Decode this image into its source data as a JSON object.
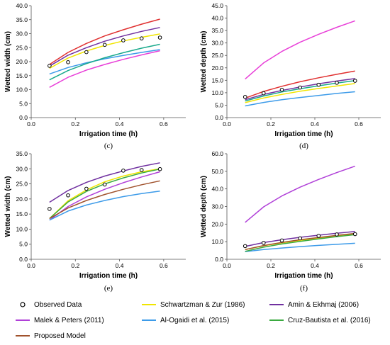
{
  "chart_data": [
    {
      "panel": "(c)",
      "type": "line",
      "xlabel": "Irrigation time (h)",
      "ylabel": "Wetted width (cm)",
      "xlim": [
        0.0,
        0.7
      ],
      "ylim": [
        0.0,
        40.0
      ],
      "xticks": [
        "0.0",
        "0.2",
        "0.4",
        "0.6"
      ],
      "yticks": [
        "0.0",
        "5.0",
        "10.0",
        "15.0",
        "20.0",
        "25.0",
        "30.0",
        "35.0",
        "40.0"
      ],
      "observed": {
        "x": [
          0.083,
          0.167,
          0.25,
          0.333,
          0.417,
          0.5,
          0.583
        ],
        "y": [
          18.5,
          19.8,
          23.4,
          26.0,
          27.6,
          28.3,
          28.6
        ]
      },
      "series": [
        {
          "name": "Schwartzman & Zur (1986)",
          "color": "#f0e500",
          "x": [
            0.083,
            0.167,
            0.25,
            0.333,
            0.417,
            0.5,
            0.583
          ],
          "y": [
            17.6,
            21.3,
            23.8,
            25.8,
            27.4,
            28.7,
            29.9
          ]
        },
        {
          "name": "Amin & Ekhmaj (2006)",
          "color": "#7030a0",
          "x": [
            0.083,
            0.167,
            0.25,
            0.333,
            0.417,
            0.5,
            0.583
          ],
          "y": [
            18.4,
            22.3,
            25.0,
            27.3,
            29.2,
            30.8,
            32.2
          ]
        },
        {
          "name": "Malek & Peters (2011)",
          "color": "#e83fd8",
          "x": [
            0.083,
            0.167,
            0.25,
            0.333,
            0.417,
            0.5,
            0.583
          ],
          "y": [
            10.8,
            14.4,
            17.0,
            19.0,
            20.8,
            22.4,
            23.9
          ]
        },
        {
          "name": "Al-Ogaidi et al. (2015)",
          "color": "#3d9be9",
          "x": [
            0.083,
            0.167,
            0.25,
            0.333,
            0.417,
            0.5,
            0.583
          ],
          "y": [
            15.6,
            17.9,
            19.6,
            21.0,
            22.2,
            23.3,
            24.3
          ]
        },
        {
          "name": "Cruz-Bautista et al. (2016)",
          "color": "#1aaa8c",
          "x": [
            0.083,
            0.167,
            0.25,
            0.333,
            0.417,
            0.5,
            0.583
          ],
          "y": [
            13.5,
            16.8,
            19.3,
            21.4,
            23.2,
            24.8,
            26.2
          ]
        },
        {
          "name": "Proposed Model",
          "color": "#e03030",
          "x": [
            0.083,
            0.167,
            0.25,
            0.333,
            0.417,
            0.5,
            0.583
          ],
          "y": [
            19.0,
            23.3,
            26.5,
            29.2,
            31.4,
            33.4,
            35.2
          ]
        }
      ]
    },
    {
      "panel": "(d)",
      "type": "line",
      "xlabel": "Irrigation time (h)",
      "ylabel": "Wetted depth (cm)",
      "xlim": [
        0.0,
        0.7
      ],
      "ylim": [
        0.0,
        45.0
      ],
      "xticks": [
        "0.0",
        "0.2",
        "0.4",
        "0.6"
      ],
      "yticks": [
        "0.0",
        "5.0",
        "10.0",
        "15.0",
        "20.0",
        "25.0",
        "30.0",
        "35.0",
        "40.0",
        "45.0"
      ],
      "observed": {
        "x": [
          0.083,
          0.167,
          0.25,
          0.333,
          0.417,
          0.5,
          0.583
        ],
        "y": [
          8.3,
          9.8,
          11.2,
          12.1,
          13.2,
          14.0,
          14.8
        ]
      },
      "series": [
        {
          "name": "Schwartzman & Zur (1986)",
          "color": "#f0e500",
          "x": [
            0.083,
            0.167,
            0.25,
            0.333,
            0.417,
            0.5,
            0.583
          ],
          "y": [
            6.0,
            7.9,
            9.3,
            10.6,
            11.7,
            12.7,
            13.7
          ]
        },
        {
          "name": "Amin & Ekhmaj (2006)",
          "color": "#7030a0",
          "x": [
            0.083,
            0.167,
            0.25,
            0.333,
            0.417,
            0.5,
            0.583
          ],
          "y": [
            7.2,
            9.3,
            10.9,
            12.3,
            13.6,
            14.7,
            15.7
          ]
        },
        {
          "name": "Malek & Peters (2011)",
          "color": "#e83fd8",
          "x": [
            0.083,
            0.167,
            0.25,
            0.333,
            0.417,
            0.5,
            0.583
          ],
          "y": [
            15.5,
            22.0,
            26.6,
            30.3,
            33.5,
            36.3,
            38.9
          ]
        },
        {
          "name": "Al-Ogaidi et al. (2015)",
          "color": "#3d9be9",
          "x": [
            0.083,
            0.167,
            0.25,
            0.333,
            0.417,
            0.5,
            0.583
          ],
          "y": [
            4.7,
            6.1,
            7.2,
            8.1,
            8.9,
            9.7,
            10.4
          ]
        },
        {
          "name": "Cruz-Bautista et al. (2016)",
          "color": "#1aaa8c",
          "x": [
            0.083,
            0.167,
            0.25,
            0.333,
            0.417,
            0.5,
            0.583
          ],
          "y": [
            6.7,
            8.7,
            10.3,
            11.6,
            12.8,
            13.9,
            14.9
          ]
        },
        {
          "name": "Proposed Model",
          "color": "#e03030",
          "x": [
            0.083,
            0.167,
            0.25,
            0.333,
            0.417,
            0.5,
            0.583
          ],
          "y": [
            7.8,
            10.5,
            12.6,
            14.4,
            16.0,
            17.4,
            18.7
          ]
        }
      ]
    },
    {
      "panel": "(e)",
      "type": "line",
      "xlabel": "Irrigation time (h)",
      "ylabel": "Wetted width (cm)",
      "xlim": [
        0.0,
        0.7
      ],
      "ylim": [
        0.0,
        35.0
      ],
      "xticks": [
        "0.0",
        "0.2",
        "0.4",
        "0.6"
      ],
      "yticks": [
        "0.0",
        "5.0",
        "10.0",
        "15.0",
        "20.0",
        "25.0",
        "30.0",
        "35.0"
      ],
      "observed": {
        "x": [
          0.083,
          0.167,
          0.25,
          0.333,
          0.417,
          0.5,
          0.583
        ],
        "y": [
          16.7,
          21.2,
          23.4,
          24.8,
          29.4,
          29.6,
          29.9
        ]
      },
      "series": [
        {
          "name": "Schwartzman & Zur (1986)",
          "color": "#f0e500",
          "x": [
            0.083,
            0.167,
            0.25,
            0.333,
            0.417,
            0.5,
            0.583
          ],
          "y": [
            13.5,
            19.4,
            23.0,
            25.7,
            27.6,
            29.0,
            30.0
          ]
        },
        {
          "name": "Amin & Ekhmaj (2006)",
          "color": "#7030a0",
          "x": [
            0.083,
            0.167,
            0.25,
            0.333,
            0.417,
            0.5,
            0.583
          ],
          "y": [
            18.9,
            22.8,
            25.5,
            27.6,
            29.3,
            30.8,
            32.0
          ]
        },
        {
          "name": "Malek & Peters (2011)",
          "color": "#b040d8",
          "x": [
            0.083,
            0.167,
            0.25,
            0.333,
            0.417,
            0.5,
            0.583
          ],
          "y": [
            13.0,
            17.5,
            20.7,
            23.2,
            25.4,
            27.3,
            29.0
          ]
        },
        {
          "name": "Al-Ogaidi et al. (2015)",
          "color": "#3d9be9",
          "x": [
            0.083,
            0.167,
            0.25,
            0.333,
            0.417,
            0.5,
            0.583
          ],
          "y": [
            13.0,
            16.0,
            18.0,
            19.5,
            20.8,
            21.8,
            22.6
          ]
        },
        {
          "name": "Cruz-Bautista et al. (2016)",
          "color": "#3aaa40",
          "x": [
            0.083,
            0.167,
            0.25,
            0.333,
            0.417,
            0.5,
            0.583
          ],
          "y": [
            13.5,
            19.0,
            22.5,
            25.0,
            27.0,
            28.6,
            29.9
          ]
        },
        {
          "name": "Proposed Model",
          "color": "#a0522d",
          "x": [
            0.083,
            0.167,
            0.25,
            0.333,
            0.417,
            0.5,
            0.583
          ],
          "y": [
            13.5,
            17.0,
            19.5,
            21.5,
            23.2,
            24.7,
            26.0
          ]
        }
      ]
    },
    {
      "panel": "(f)",
      "type": "line",
      "xlabel": "Irrigation time (h)",
      "ylabel": "Wetted depth (cm)",
      "xlim": [
        0.0,
        0.7
      ],
      "ylim": [
        0.0,
        60.0
      ],
      "xticks": [
        "0.0",
        "0.2",
        "0.4",
        "0.6"
      ],
      "yticks": [
        "0.0",
        "10.0",
        "20.0",
        "30.0",
        "40.0",
        "50.0",
        "60.0"
      ],
      "observed": {
        "x": [
          0.083,
          0.167,
          0.25,
          0.333,
          0.417,
          0.5,
          0.583
        ],
        "y": [
          7.5,
          9.3,
          10.7,
          11.9,
          13.3,
          14.1,
          14.3
        ]
      },
      "series": [
        {
          "name": "Schwartzman & Zur (1986)",
          "color": "#f0e500",
          "x": [
            0.083,
            0.167,
            0.25,
            0.333,
            0.417,
            0.5,
            0.583
          ],
          "y": [
            5.5,
            7.7,
            9.4,
            10.8,
            12.1,
            13.2,
            14.2
          ]
        },
        {
          "name": "Amin & Ekhmaj (2006)",
          "color": "#7030a0",
          "x": [
            0.083,
            0.167,
            0.25,
            0.333,
            0.417,
            0.5,
            0.583
          ],
          "y": [
            7.3,
            9.5,
            11.1,
            12.5,
            13.7,
            14.8,
            15.8
          ]
        },
        {
          "name": "Malek & Peters (2011)",
          "color": "#b040d8",
          "x": [
            0.083,
            0.167,
            0.25,
            0.333,
            0.417,
            0.5,
            0.583
          ],
          "y": [
            21.0,
            29.8,
            36.0,
            41.0,
            45.4,
            49.3,
            52.9
          ]
        },
        {
          "name": "Al-Ogaidi et al. (2015)",
          "color": "#3d9be9",
          "x": [
            0.083,
            0.167,
            0.25,
            0.333,
            0.417,
            0.5,
            0.583
          ],
          "y": [
            4.3,
            5.5,
            6.4,
            7.2,
            7.9,
            8.5,
            9.1
          ]
        },
        {
          "name": "Cruz-Bautista et al. (2016)",
          "color": "#3aaa40",
          "x": [
            0.083,
            0.167,
            0.25,
            0.333,
            0.417,
            0.5,
            0.583
          ],
          "y": [
            4.5,
            6.9,
            8.7,
            10.2,
            11.6,
            12.9,
            14.0
          ]
        },
        {
          "name": "Proposed Model",
          "color": "#a0522d",
          "x": [
            0.083,
            0.167,
            0.25,
            0.333,
            0.417,
            0.5,
            0.583
          ],
          "y": [
            5.5,
            7.8,
            9.6,
            11.1,
            12.4,
            13.6,
            14.7
          ]
        }
      ]
    }
  ],
  "legend": [
    {
      "label": "Observed Data",
      "kind": "marker",
      "color": "#000000"
    },
    {
      "label": "Schwartzman & Zur (1986)",
      "kind": "line",
      "color": "#f0e500"
    },
    {
      "label": "Amin & Ekhmaj (2006)",
      "kind": "line",
      "color": "#7030a0"
    },
    {
      "label": "Malek & Peters (2011)",
      "kind": "line",
      "color": "#b040d8"
    },
    {
      "label": "Al-Ogaidi et al. (2015)",
      "kind": "line",
      "color": "#3d9be9"
    },
    {
      "label": "Cruz-Bautista et al. (2016)",
      "kind": "line",
      "color": "#3aaa40"
    },
    {
      "label": "Proposed Model",
      "kind": "line",
      "color": "#a0522d"
    }
  ]
}
